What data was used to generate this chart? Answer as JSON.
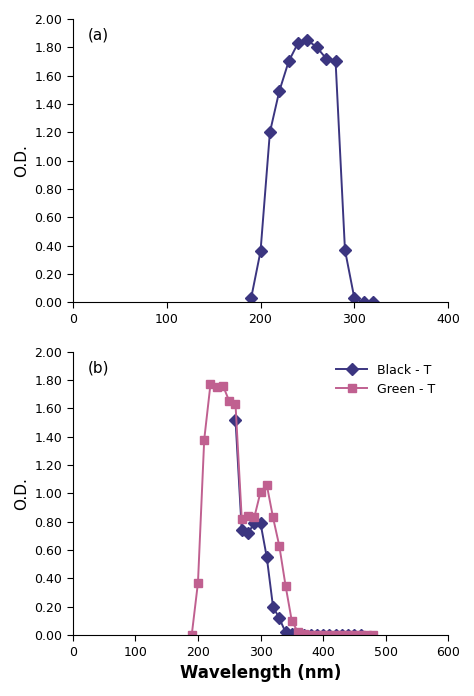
{
  "panel_a": {
    "x": [
      190,
      200,
      210,
      220,
      230,
      240,
      250,
      260,
      270,
      280,
      290,
      300,
      310,
      320
    ],
    "y": [
      0.03,
      0.36,
      1.2,
      1.49,
      1.7,
      1.83,
      1.85,
      1.8,
      1.72,
      1.7,
      0.37,
      0.03,
      0.0,
      0.0
    ],
    "color": "#3b3580",
    "marker": "D",
    "markersize": 6
  },
  "panel_b": {
    "black_t": {
      "x": [
        260,
        270,
        280,
        290,
        300,
        310,
        320,
        330,
        340,
        350,
        360,
        370,
        380,
        390,
        400,
        410,
        420,
        430,
        440,
        450,
        460
      ],
      "y": [
        1.52,
        0.74,
        0.72,
        0.79,
        0.79,
        0.55,
        0.2,
        0.12,
        0.02,
        0.01,
        0.0,
        0.0,
        0.0,
        0.0,
        0.0,
        0.0,
        0.0,
        0.0,
        0.0,
        0.0,
        0.0
      ],
      "color": "#3b3580",
      "marker": "D",
      "label": "Black - T",
      "markersize": 6
    },
    "green_t": {
      "x": [
        190,
        200,
        210,
        220,
        230,
        240,
        250,
        260,
        270,
        280,
        290,
        300,
        310,
        320,
        330,
        340,
        350,
        360,
        370,
        380,
        390,
        400,
        410,
        420,
        430,
        440,
        450,
        460,
        470,
        480
      ],
      "y": [
        0.0,
        0.37,
        1.38,
        1.77,
        1.75,
        1.76,
        1.65,
        1.63,
        0.82,
        0.84,
        0.83,
        1.01,
        1.06,
        0.83,
        0.63,
        0.35,
        0.1,
        0.02,
        0.01,
        0.0,
        0.0,
        0.0,
        0.0,
        0.0,
        0.0,
        0.0,
        0.0,
        0.0,
        0.0,
        0.0
      ],
      "color": "#c06090",
      "marker": "s",
      "label": "Green - T",
      "markersize": 6
    }
  },
  "ylabel": "O.D.",
  "xlabel": "Wavelength (nm)",
  "ylim": [
    0.0,
    2.0
  ],
  "yticks": [
    0.0,
    0.2,
    0.4,
    0.6,
    0.8,
    1.0,
    1.2,
    1.4,
    1.6,
    1.8,
    2.0
  ],
  "xlim_a": [
    0,
    400
  ],
  "xticks_a": [
    0,
    100,
    200,
    300,
    400
  ],
  "xlim_b": [
    0,
    600
  ],
  "xticks_b": [
    0,
    100,
    200,
    300,
    400,
    500,
    600
  ],
  "label_a": "(a)",
  "label_b": "(b)",
  "tick_fontsize": 9,
  "label_fontsize": 11,
  "axis_label_fontsize": 12,
  "line_width": 1.4
}
